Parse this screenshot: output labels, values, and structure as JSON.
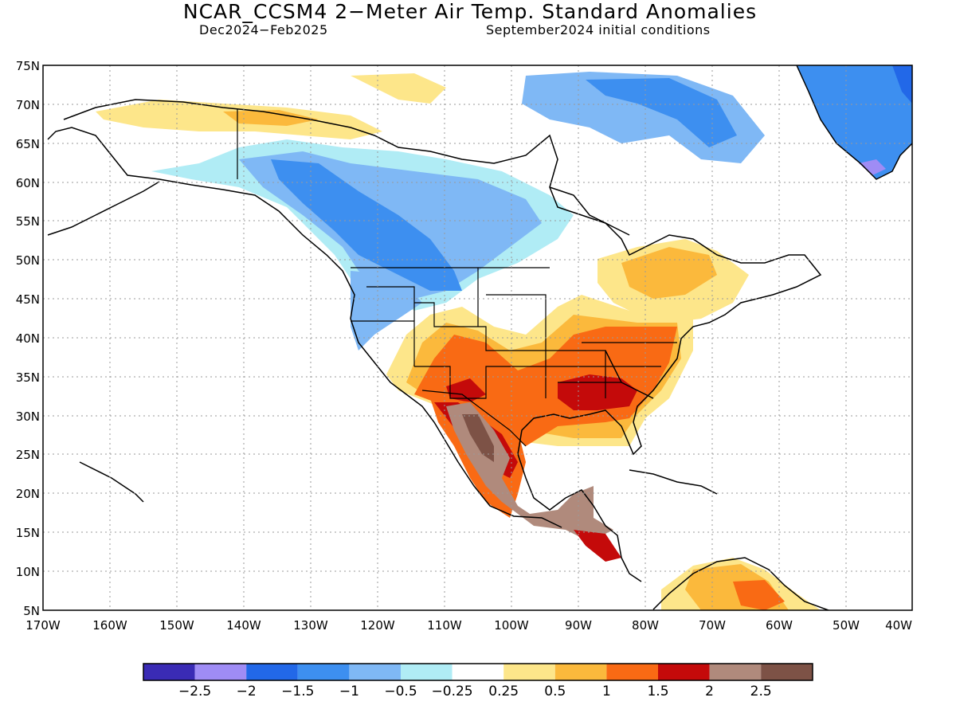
{
  "title": "NCAR_CCSM4 2−Meter Air Temp. Standard Anomalies",
  "subtitle_left": "Dec2024−Feb2025",
  "subtitle_right": "September2024 initial conditions",
  "lat_ticks": [
    "75N",
    "70N",
    "65N",
    "60N",
    "55N",
    "50N",
    "45N",
    "40N",
    "35N",
    "30N",
    "25N",
    "20N",
    "15N",
    "10N",
    "5N"
  ],
  "lon_ticks": [
    "170W",
    "160W",
    "150W",
    "140W",
    "130W",
    "120W",
    "110W",
    "100W",
    "90W",
    "80W",
    "70W",
    "60W",
    "50W",
    "40W"
  ],
  "colorbar": {
    "colors": [
      "#3a2bb5",
      "#9f8cf5",
      "#2268e8",
      "#3d8ff0",
      "#7fb8f5",
      "#b0ecf5",
      "#ffffff",
      "#fde68a",
      "#fbb93c",
      "#f96a14",
      "#c40a0a",
      "#b08a7c",
      "#7d5246"
    ],
    "labels": [
      "−2.5",
      "−2",
      "−1.5",
      "−1",
      "−0.5",
      "−0.25",
      "0.25",
      "0.5",
      "1",
      "1.5",
      "2",
      "2.5"
    ]
  }
}
